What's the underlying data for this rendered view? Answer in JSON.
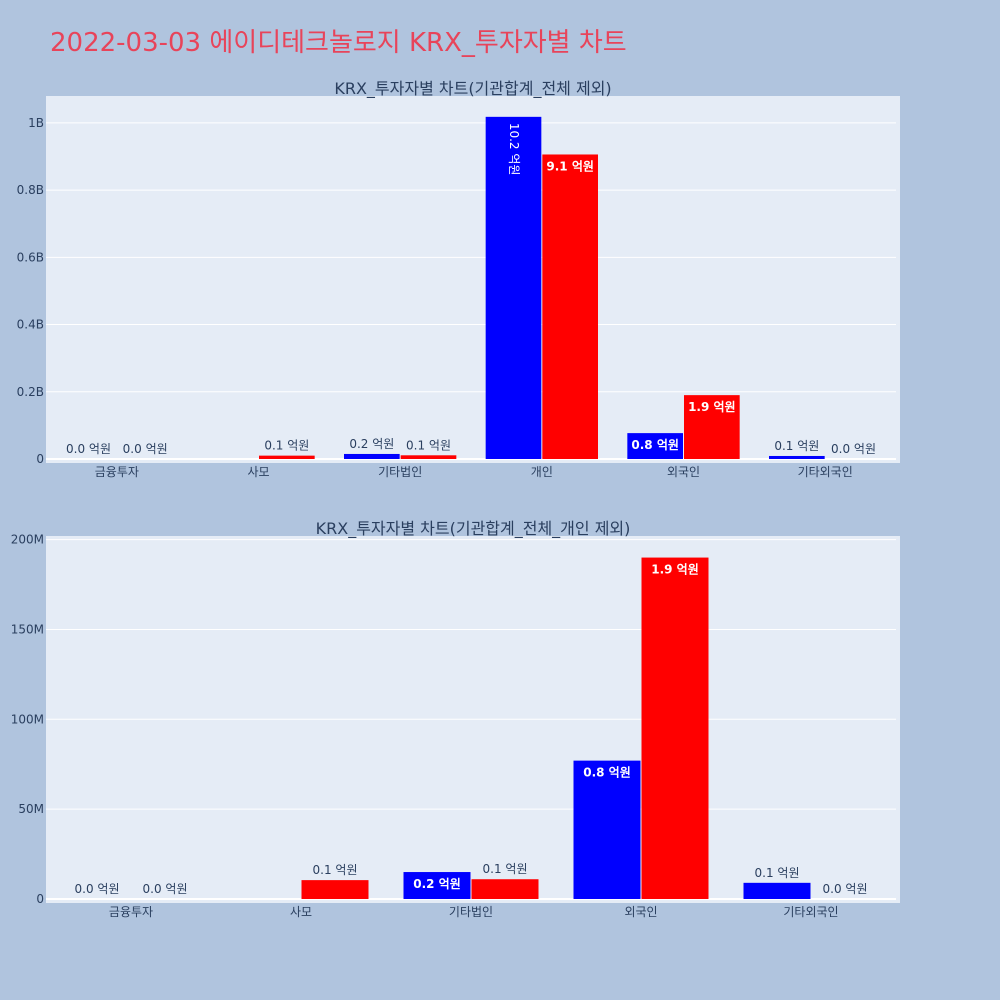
{
  "page_title": "2022-03-03 에이디테크놀로지 KRX_투자자별 차트",
  "colors": {
    "background": "#b0c4de",
    "plot_bg": "#e5ecf6",
    "grid": "#ffffff",
    "title": "#e8445a",
    "text": "#2a3f5f",
    "series_a": "#0000ff",
    "series_b": "#ff0000"
  },
  "chart_data": [
    {
      "type": "bar",
      "title": "KRX_투자자별 차트(기관합계_전체 제외)",
      "categories": [
        "금융투자",
        "사모",
        "기타법인",
        "개인",
        "외국인",
        "기타외국인"
      ],
      "series": [
        {
          "color": "#0000ff",
          "values": [
            0,
            0,
            15000000,
            1018000000,
            77000000,
            9000000
          ],
          "labels": [
            "0.0 억원",
            "",
            "0.2 억원",
            "10.2 억원",
            "0.8 억원",
            "0.1 억원"
          ]
        },
        {
          "color": "#ff0000",
          "values": [
            0,
            10000000,
            11000000,
            906000000,
            190000000,
            0
          ],
          "labels": [
            "0.0 억원",
            "0.1 억원",
            "0.1 억원",
            "9.1 억원",
            "1.9 억원",
            "0.0 억원"
          ]
        }
      ],
      "yticks": [
        0,
        200000000,
        400000000,
        600000000,
        800000000,
        1000000000
      ],
      "yticklabels": [
        "0",
        "0.2B",
        "0.4B",
        "0.6B",
        "0.8B",
        "1B"
      ],
      "ylim": [
        0,
        1080000000
      ],
      "grid": true
    },
    {
      "type": "bar",
      "title": "KRX_투자자별 차트(기관합계_전체_개인 제외)",
      "categories": [
        "금융투자",
        "사모",
        "기타법인",
        "외국인",
        "기타외국인"
      ],
      "series": [
        {
          "color": "#0000ff",
          "values": [
            0,
            0,
            15000000,
            77000000,
            9000000
          ],
          "labels": [
            "0.0 억원",
            "",
            "0.2 억원",
            "0.8 억원",
            "0.1 억원"
          ]
        },
        {
          "color": "#ff0000",
          "values": [
            0,
            10500000,
            11000000,
            190000000,
            0
          ],
          "labels": [
            "0.0 억원",
            "0.1 억원",
            "0.1 억원",
            "1.9 억원",
            "0.0 억원"
          ]
        }
      ],
      "yticks": [
        0,
        50000000,
        100000000,
        150000000,
        200000000
      ],
      "yticklabels": [
        "0",
        "50M",
        "100M",
        "150M",
        "200M"
      ],
      "ylim": [
        0,
        202000000
      ],
      "grid": true
    }
  ]
}
